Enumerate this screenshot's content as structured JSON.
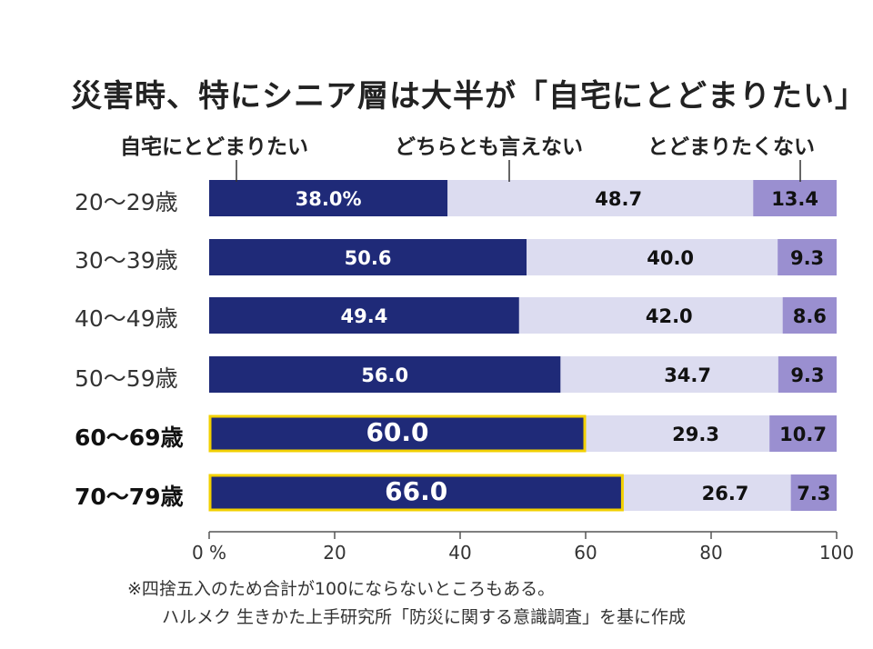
{
  "title": "災害時、特にシニア層は大半が「自宅にとどまりたい」",
  "colors": {
    "stay": "#1f2a78",
    "neutral": "#dcdcf0",
    "not_stay": "#9a8fd0",
    "highlight_border": "#f2d000",
    "axis": "#555555"
  },
  "chart_data": {
    "type": "bar",
    "orientation": "horizontal-stacked-100",
    "categories": [
      "20～29歳",
      "30～39歳",
      "40～49歳",
      "50～59歳",
      "60～69歳",
      "70～79歳"
    ],
    "bold_categories": [
      "60～69歳",
      "70～79歳"
    ],
    "series": [
      {
        "name": "自宅にとどまりたい",
        "values": [
          38.0,
          50.6,
          49.4,
          56.0,
          60.0,
          66.0
        ],
        "labels": [
          "38.0%",
          "50.6",
          "49.4",
          "56.0",
          "60.0",
          "66.0"
        ]
      },
      {
        "name": "どちらとも言えない",
        "values": [
          48.7,
          40.0,
          42.0,
          34.7,
          29.3,
          26.7
        ],
        "labels": [
          "48.7",
          "40.0",
          "42.0",
          "34.7",
          "29.3",
          "26.7"
        ]
      },
      {
        "name": "とどまりたくない",
        "values": [
          13.4,
          9.3,
          8.6,
          9.3,
          10.7,
          7.3
        ],
        "labels": [
          "13.4",
          "9.3",
          "8.6",
          "9.3",
          "10.7",
          "7.3"
        ]
      }
    ],
    "xlim": [
      0,
      100
    ],
    "xticks": [
      "0 %",
      "20",
      "40",
      "60",
      "80",
      "100"
    ],
    "legend_placement": "top"
  },
  "notes": [
    "※四捨五入のため合計が100にならないところもある。",
    "ハルメク 生きかた上手研究所「防災に関する意識調査」を基に作成"
  ]
}
